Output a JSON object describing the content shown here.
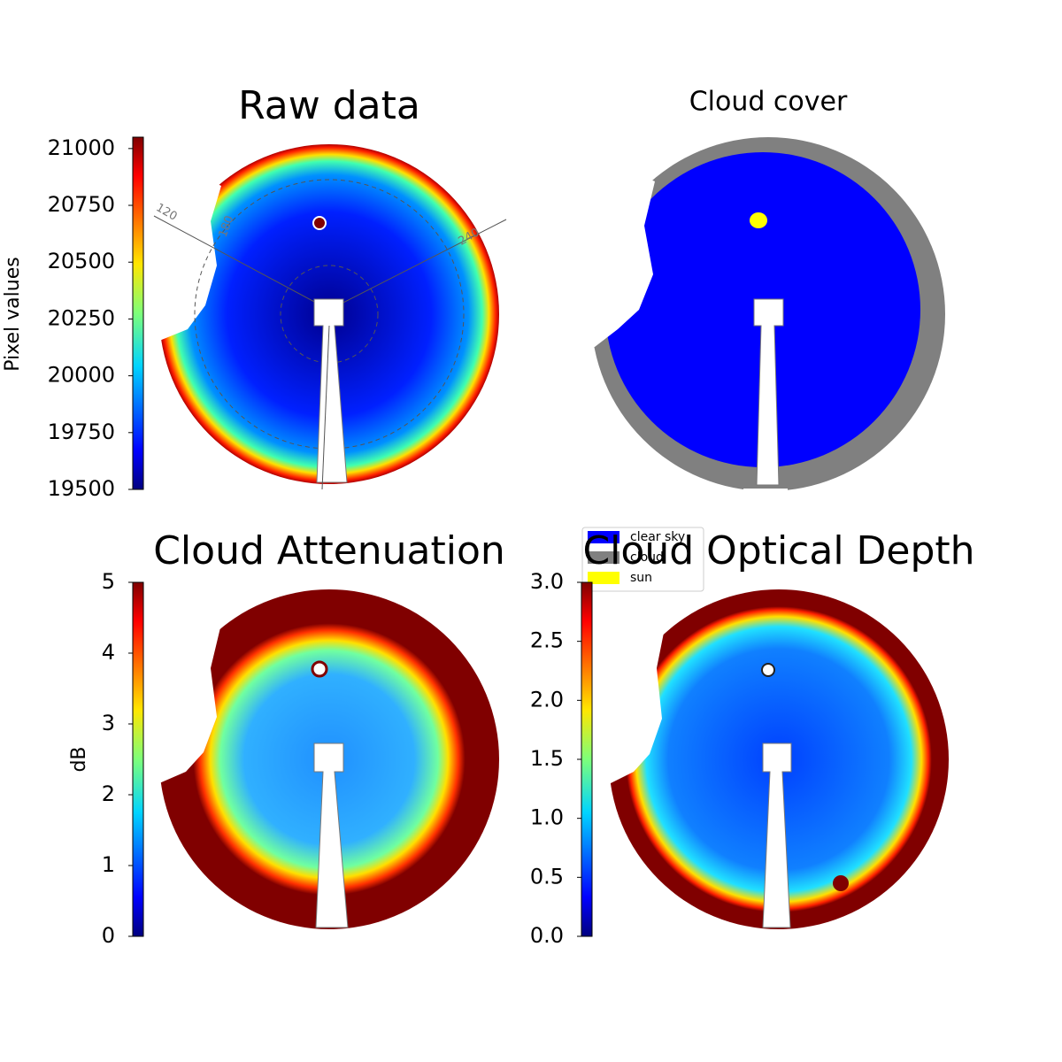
{
  "chart_data": [
    {
      "type": "image",
      "title": "Raw data",
      "colorbar_label": "Pixel values",
      "colormap": "jet",
      "ylim": [
        19500,
        21050
      ],
      "yticks": [
        19500,
        19750,
        20000,
        20250,
        20500,
        20750,
        21000
      ],
      "annotations": [
        "120",
        "180",
        "240"
      ]
    },
    {
      "type": "image",
      "title": "Cloud cover",
      "series": [
        {
          "name": "clear sky",
          "color": "#0000ff"
        },
        {
          "name": "cloud",
          "color": "#808080"
        },
        {
          "name": "sun",
          "color": "#ffff00"
        }
      ]
    },
    {
      "type": "image",
      "title": "Cloud Attenuation",
      "colorbar_label": "dB",
      "colormap": "jet",
      "ylim": [
        0,
        5
      ],
      "yticks": [
        0,
        1,
        2,
        3,
        4,
        5
      ]
    },
    {
      "type": "image",
      "title": "Cloud Optical Depth",
      "colormap": "jet",
      "ylim": [
        0,
        3
      ],
      "yticks": [
        {
          "value": 0,
          "label": "0.0"
        },
        0.5,
        {
          "value": 1,
          "label": "1.0"
        },
        1.5,
        {
          "value": 2,
          "label": "2.0"
        },
        2.5,
        {
          "value": 3,
          "label": "3.0"
        }
      ]
    }
  ]
}
